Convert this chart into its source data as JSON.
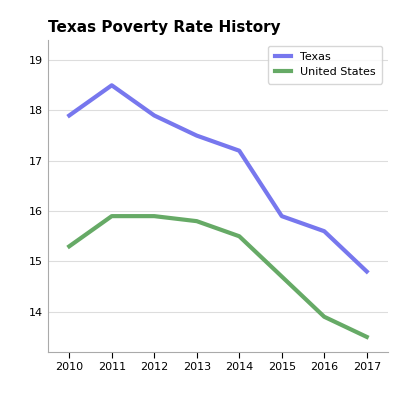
{
  "title": "Texas Poverty Rate History",
  "years": [
    2010,
    2011,
    2012,
    2013,
    2014,
    2015,
    2016,
    2017
  ],
  "texas": [
    17.9,
    18.5,
    17.9,
    17.5,
    17.2,
    15.9,
    15.6,
    14.8
  ],
  "us": [
    15.3,
    15.9,
    15.9,
    15.8,
    15.5,
    14.7,
    13.9,
    13.5
  ],
  "texas_color": "#7777ee",
  "us_color": "#66aa66",
  "line_width": 3.0,
  "ylim_min": 13.2,
  "ylim_max": 19.4,
  "background_color": "#ffffff",
  "plot_bg_color": "#ffffff",
  "grid_color": "#dddddd",
  "title_fontsize": 11,
  "tick_fontsize": 8,
  "legend_labels": [
    "Texas",
    "United States"
  ]
}
